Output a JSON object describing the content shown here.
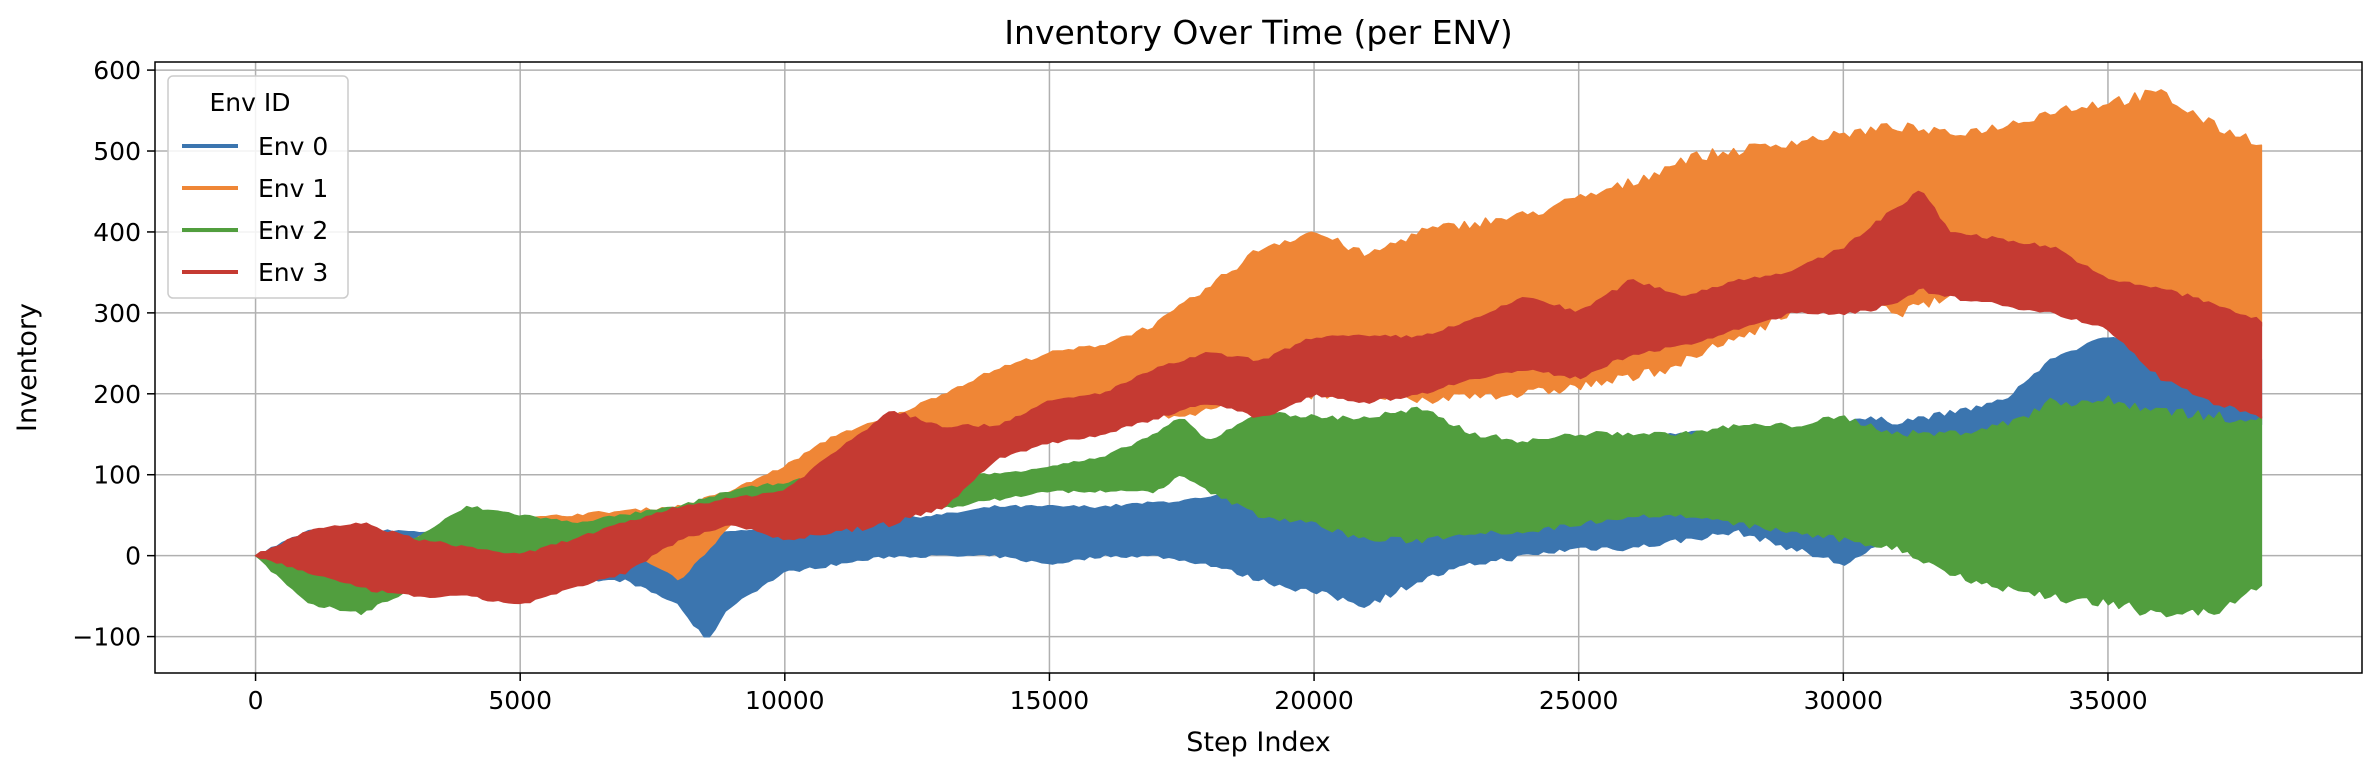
{
  "chart_data": {
    "type": "area",
    "title": "Inventory Over Time (per ENV)",
    "xlabel": "Step Index",
    "ylabel": "Inventory",
    "xlim": [
      -1900,
      39800
    ],
    "ylim": [
      -145,
      610
    ],
    "xticks": [
      0,
      5000,
      10000,
      15000,
      20000,
      25000,
      30000,
      35000
    ],
    "yticks": [
      -100,
      0,
      100,
      200,
      300,
      400,
      500,
      600
    ],
    "grid": true,
    "legend": {
      "title": "Env ID",
      "placement": "top-left"
    },
    "series": [
      {
        "name": "Env 0",
        "color": "#3b75af",
        "x": [
          0,
          1000,
          2000,
          3000,
          4000,
          5000,
          6000,
          7000,
          8000,
          8500,
          9000,
          10000,
          11000,
          12000,
          13000,
          14000,
          15000,
          16000,
          17000,
          18000,
          19000,
          20000,
          21000,
          22000,
          23000,
          24000,
          25000,
          26000,
          27000,
          28000,
          29000,
          30000,
          31000,
          32000,
          33000,
          34000,
          35000,
          36000,
          37000,
          37900
        ],
        "upper": [
          0,
          30,
          30,
          30,
          20,
          20,
          20,
          20,
          30,
          20,
          30,
          30,
          40,
          45,
          50,
          60,
          60,
          60,
          65,
          70,
          85,
          110,
          120,
          110,
          110,
          125,
          140,
          145,
          150,
          150,
          150,
          170,
          165,
          175,
          190,
          245,
          270,
          265,
          230,
          240
        ],
        "lower": [
          0,
          -10,
          -10,
          -10,
          -20,
          -30,
          -30,
          -30,
          -60,
          -105,
          -60,
          -20,
          -10,
          0,
          0,
          0,
          -10,
          0,
          0,
          -10,
          -30,
          -45,
          -60,
          -30,
          -10,
          0,
          10,
          10,
          20,
          30,
          10,
          -10,
          20,
          40,
          60,
          170,
          180,
          170,
          150,
          160
        ]
      },
      {
        "name": "Env 1",
        "color": "#ef8636",
        "x": [
          0,
          1000,
          2000,
          3000,
          4000,
          5000,
          6000,
          7000,
          8000,
          9000,
          10000,
          11000,
          12000,
          13000,
          14000,
          15000,
          16000,
          17000,
          18000,
          19000,
          20000,
          21000,
          22000,
          23000,
          24000,
          25000,
          26000,
          27000,
          28000,
          29000,
          30000,
          31000,
          32000,
          33000,
          34000,
          35000,
          36000,
          37000,
          37900
        ],
        "upper": [
          0,
          20,
          20,
          20,
          40,
          45,
          50,
          55,
          60,
          80,
          110,
          150,
          170,
          200,
          230,
          250,
          260,
          285,
          330,
          380,
          400,
          370,
          400,
          410,
          420,
          440,
          460,
          490,
          500,
          510,
          520,
          530,
          520,
          530,
          550,
          560,
          570,
          530,
          510
        ],
        "lower": [
          0,
          -20,
          -20,
          -20,
          -10,
          0,
          10,
          10,
          -30,
          40,
          80,
          110,
          120,
          130,
          150,
          170,
          170,
          170,
          180,
          200,
          200,
          200,
          190,
          200,
          200,
          210,
          220,
          240,
          270,
          300,
          320,
          300,
          320,
          340,
          320,
          300,
          280,
          280,
          290
        ]
      },
      {
        "name": "Env 2",
        "color": "#519e3e",
        "x": [
          0,
          1000,
          2000,
          3000,
          4000,
          5000,
          6000,
          7000,
          8000,
          9000,
          10000,
          11000,
          12000,
          13000,
          14000,
          15000,
          16000,
          17000,
          17500,
          18000,
          19000,
          20000,
          21000,
          22000,
          23000,
          24000,
          25000,
          26000,
          27000,
          28000,
          29000,
          30000,
          31000,
          32000,
          33000,
          34000,
          35000,
          36000,
          37000,
          37900
        ],
        "upper": [
          0,
          10,
          20,
          20,
          60,
          50,
          40,
          50,
          60,
          80,
          90,
          100,
          100,
          100,
          100,
          110,
          120,
          150,
          170,
          140,
          180,
          170,
          170,
          180,
          150,
          140,
          150,
          150,
          150,
          160,
          160,
          170,
          150,
          150,
          160,
          190,
          190,
          180,
          170,
          170
        ],
        "lower": [
          0,
          -60,
          -70,
          -40,
          -20,
          -20,
          -10,
          -10,
          20,
          50,
          50,
          50,
          50,
          60,
          70,
          80,
          80,
          80,
          100,
          80,
          50,
          40,
          20,
          20,
          30,
          30,
          40,
          50,
          50,
          40,
          30,
          20,
          10,
          -20,
          -40,
          -50,
          -60,
          -70,
          -70,
          -40
        ]
      },
      {
        "name": "Env 3",
        "color": "#c53a32",
        "x": [
          0,
          1000,
          2000,
          3000,
          4000,
          5000,
          6000,
          7000,
          8000,
          9000,
          10000,
          11000,
          12000,
          13000,
          14000,
          15000,
          16000,
          17000,
          18000,
          19000,
          20000,
          21000,
          22000,
          23000,
          24000,
          25000,
          26000,
          27000,
          28000,
          29000,
          30000,
          31000,
          31500,
          32000,
          33000,
          34000,
          35000,
          36000,
          37000,
          37900
        ],
        "upper": [
          0,
          30,
          40,
          20,
          10,
          0,
          20,
          40,
          60,
          70,
          80,
          130,
          180,
          160,
          160,
          190,
          200,
          230,
          250,
          240,
          270,
          270,
          270,
          290,
          320,
          300,
          340,
          320,
          340,
          350,
          380,
          430,
          450,
          400,
          390,
          380,
          340,
          330,
          310,
          290
        ],
        "lower": [
          0,
          -20,
          -40,
          -50,
          -50,
          -60,
          -40,
          -20,
          20,
          40,
          20,
          30,
          40,
          60,
          120,
          140,
          150,
          170,
          190,
          170,
          200,
          190,
          200,
          220,
          230,
          220,
          250,
          260,
          280,
          300,
          300,
          310,
          330,
          320,
          310,
          300,
          280,
          220,
          190,
          170
        ]
      }
    ]
  }
}
